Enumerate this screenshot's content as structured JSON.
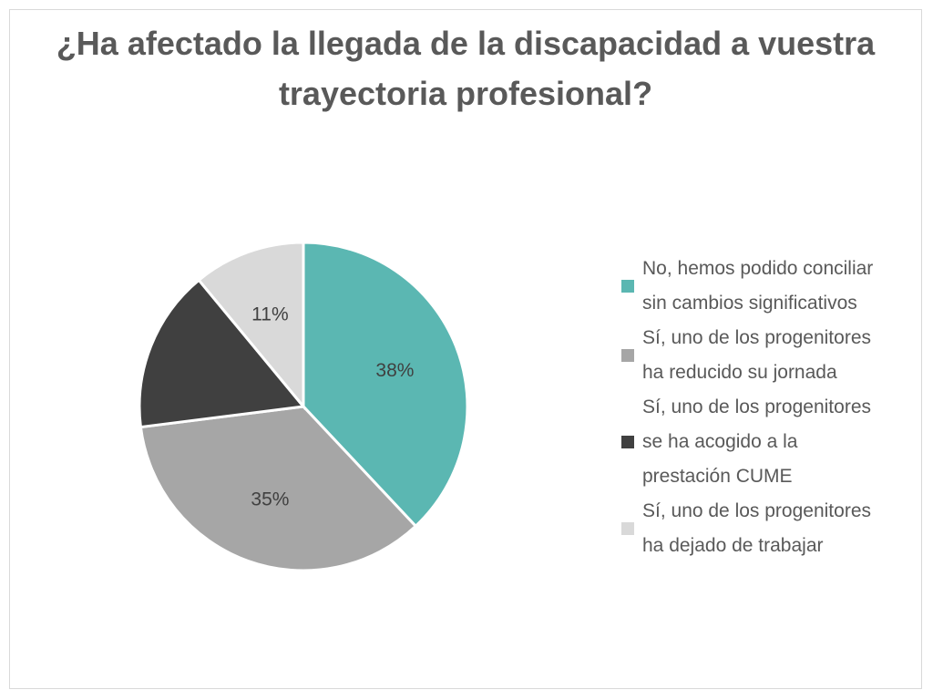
{
  "chart_data": {
    "type": "pie",
    "title": "¿Ha afectado la llegada de la discapacidad a vuestra trayectoria profesional?",
    "categories": [
      "No, hemos podido conciliar sin cambios significativos",
      "Sí, uno de los progenitores ha reducido su jornada",
      "Sí, uno de los progenitores se ha acogido a la prestación CUME",
      "Sí, uno de los progenitores ha dejado de trabajar"
    ],
    "legend_lines": [
      "No, hemos podido conciliar\nsin cambios significativos",
      "Sí, uno de los progenitores\nha reducido su jornada",
      "Sí, uno de los progenitores\nse ha acogido a la\nprestación CUME",
      "Sí, uno de los progenitores\nha dejado de trabajar"
    ],
    "values": [
      38,
      35,
      16,
      11
    ],
    "data_labels": [
      "38%",
      "35%",
      "",
      "11%"
    ],
    "colors": [
      "#5bb7b2",
      "#a6a6a6",
      "#404040",
      "#d9d9d9"
    ],
    "legend_position": "right",
    "start_angle": "top, clockwise"
  }
}
